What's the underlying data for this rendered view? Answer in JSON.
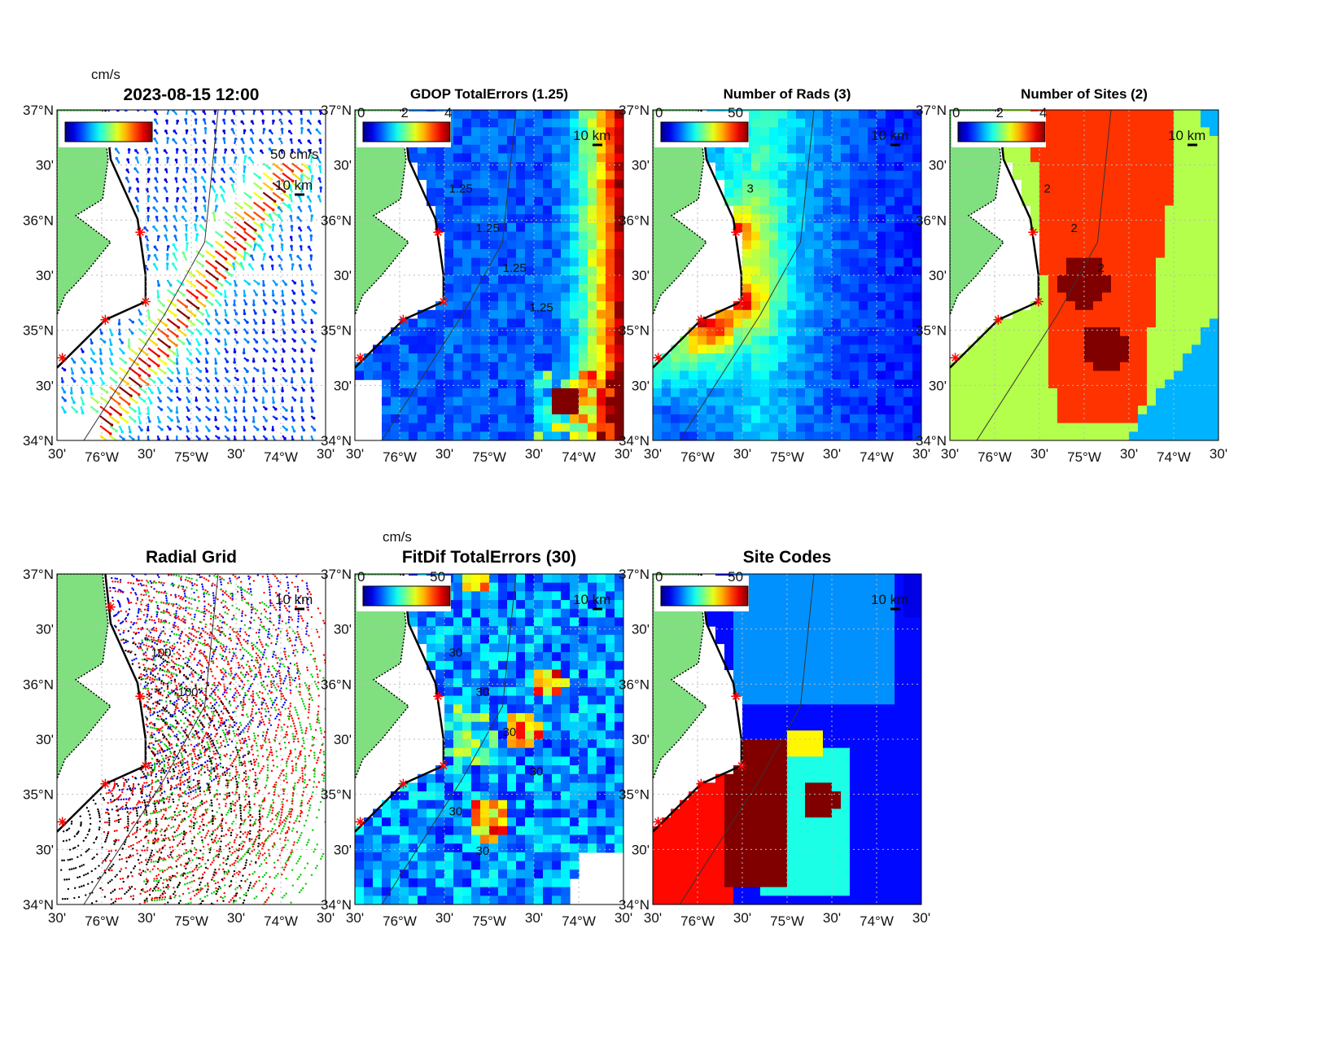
{
  "figure_label": "2023-08-15 12:00",
  "axes": {
    "lat_ticks": [
      "37°N",
      "30'",
      "36°N",
      "30'",
      "35°N",
      "30'",
      "34°N"
    ],
    "lon_ticks": [
      "30'",
      "76°W",
      "30'",
      "75°W",
      "30'",
      "74°W",
      "30'"
    ],
    "lon_range": [
      -76.5,
      -73.5
    ],
    "lat_range": [
      34,
      37
    ]
  },
  "colormap": "jet",
  "land_color": "#80e080",
  "site_marker_color": "#ff0000",
  "scale_label": "10 km",
  "chart_data": [
    {
      "id": "vectors",
      "type": "quiver",
      "title": "2023-08-15 12:00",
      "units": "cm/s",
      "colorbar_ticks": [],
      "cmin": 0,
      "cmax": 100,
      "reference_label": "50 cm/s"
    },
    {
      "id": "gdop",
      "type": "heatmap",
      "title": "GDOP TotalErrors (1.25)",
      "colorbar_ticks": [
        "0",
        "2",
        "4"
      ],
      "cmin": 0,
      "cmax": 4,
      "contour_labels": [
        "1.25",
        "1.25",
        "1.25",
        "1.25"
      ]
    },
    {
      "id": "rads",
      "type": "heatmap",
      "title": "Number of Rads (3)",
      "colorbar_ticks": [
        "0",
        "50"
      ],
      "cmin": 0,
      "cmax": 60,
      "contour_labels": [
        "3"
      ]
    },
    {
      "id": "sites",
      "type": "heatmap",
      "title": "Number of Sites (2)",
      "colorbar_ticks": [
        "0",
        "2",
        "4"
      ],
      "cmin": 0,
      "cmax": 4,
      "contour_labels": [
        "2",
        "2",
        "2"
      ]
    },
    {
      "id": "radgrid",
      "type": "scatter",
      "title": "Radial Grid",
      "colorbar_ticks": [],
      "contour_labels": [
        "100",
        "100"
      ]
    },
    {
      "id": "fitdif",
      "type": "heatmap",
      "title": "FitDif TotalErrors (30)",
      "units": "cm/s",
      "colorbar_ticks": [
        "0",
        "50"
      ],
      "cmin": 0,
      "cmax": 60,
      "contour_labels": [
        "30",
        "30",
        "30",
        "30",
        "30",
        "30"
      ]
    },
    {
      "id": "sitecodes",
      "type": "heatmap",
      "title": "Site Codes",
      "colorbar_ticks": [
        "0",
        "50"
      ],
      "cmin": 0,
      "cmax": 60
    }
  ]
}
